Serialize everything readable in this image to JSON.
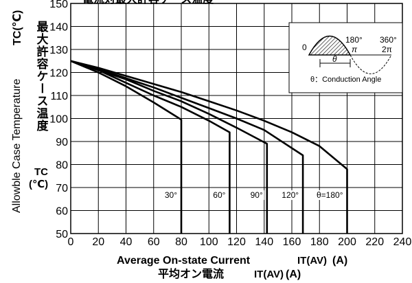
{
  "chart_data": {
    "type": "line",
    "title": "電流対最大許容ケース温度",
    "xlabel": "Average On-state Current",
    "xlabel_symbol": "IT(AV)",
    "xlabel_unit": "(A)",
    "xlabel_jp": "平均オン電流",
    "ylabel": "Allowble Case Temperature",
    "ylabel_symbol": "TC(℃)",
    "ylabel_jp": "最大許容ケース温度",
    "ylabel_symbol2": "TC",
    "ylabel_unit2": "(℃)",
    "xlim": [
      0,
      240
    ],
    "ylim": [
      50,
      150
    ],
    "xticks": [
      0,
      20,
      40,
      60,
      80,
      100,
      120,
      140,
      160,
      180,
      200,
      220,
      240
    ],
    "yticks": [
      50,
      60,
      70,
      80,
      90,
      100,
      110,
      120,
      130,
      140,
      150
    ],
    "grid": true,
    "series": [
      {
        "name": "30°",
        "x": [
          0,
          20,
          40,
          60,
          80,
          80
        ],
        "y": [
          125,
          120,
          114,
          107,
          99.5,
          50
        ]
      },
      {
        "name": "60°",
        "x": [
          0,
          20,
          40,
          60,
          80,
          100,
          115,
          115
        ],
        "y": [
          125,
          121,
          115.5,
          110,
          105,
          99,
          94,
          50
        ]
      },
      {
        "name": "90°",
        "x": [
          0,
          20,
          40,
          60,
          80,
          100,
          120,
          142,
          142
        ],
        "y": [
          125,
          121,
          117,
          112,
          107.5,
          102,
          96,
          89,
          50
        ]
      },
      {
        "name": "120°",
        "x": [
          0,
          20,
          40,
          60,
          80,
          100,
          120,
          140,
          168,
          168
        ],
        "y": [
          125,
          121.5,
          117.5,
          113.5,
          109,
          104.5,
          100,
          95,
          84,
          50
        ]
      },
      {
        "name": "θ=180°",
        "x": [
          0,
          20,
          40,
          60,
          80,
          100,
          120,
          140,
          160,
          180,
          200,
          200
        ],
        "y": [
          125,
          122,
          118.5,
          115,
          111.5,
          107.5,
          103.5,
          99,
          94,
          88,
          78,
          50
        ]
      }
    ],
    "inset": {
      "labels": {
        "zero": "0",
        "deg180": "180°",
        "pi": "π",
        "deg360": "360°",
        "twopi": "2π",
        "theta": "θ",
        "caption": "θ：Conduction Angle"
      }
    }
  }
}
